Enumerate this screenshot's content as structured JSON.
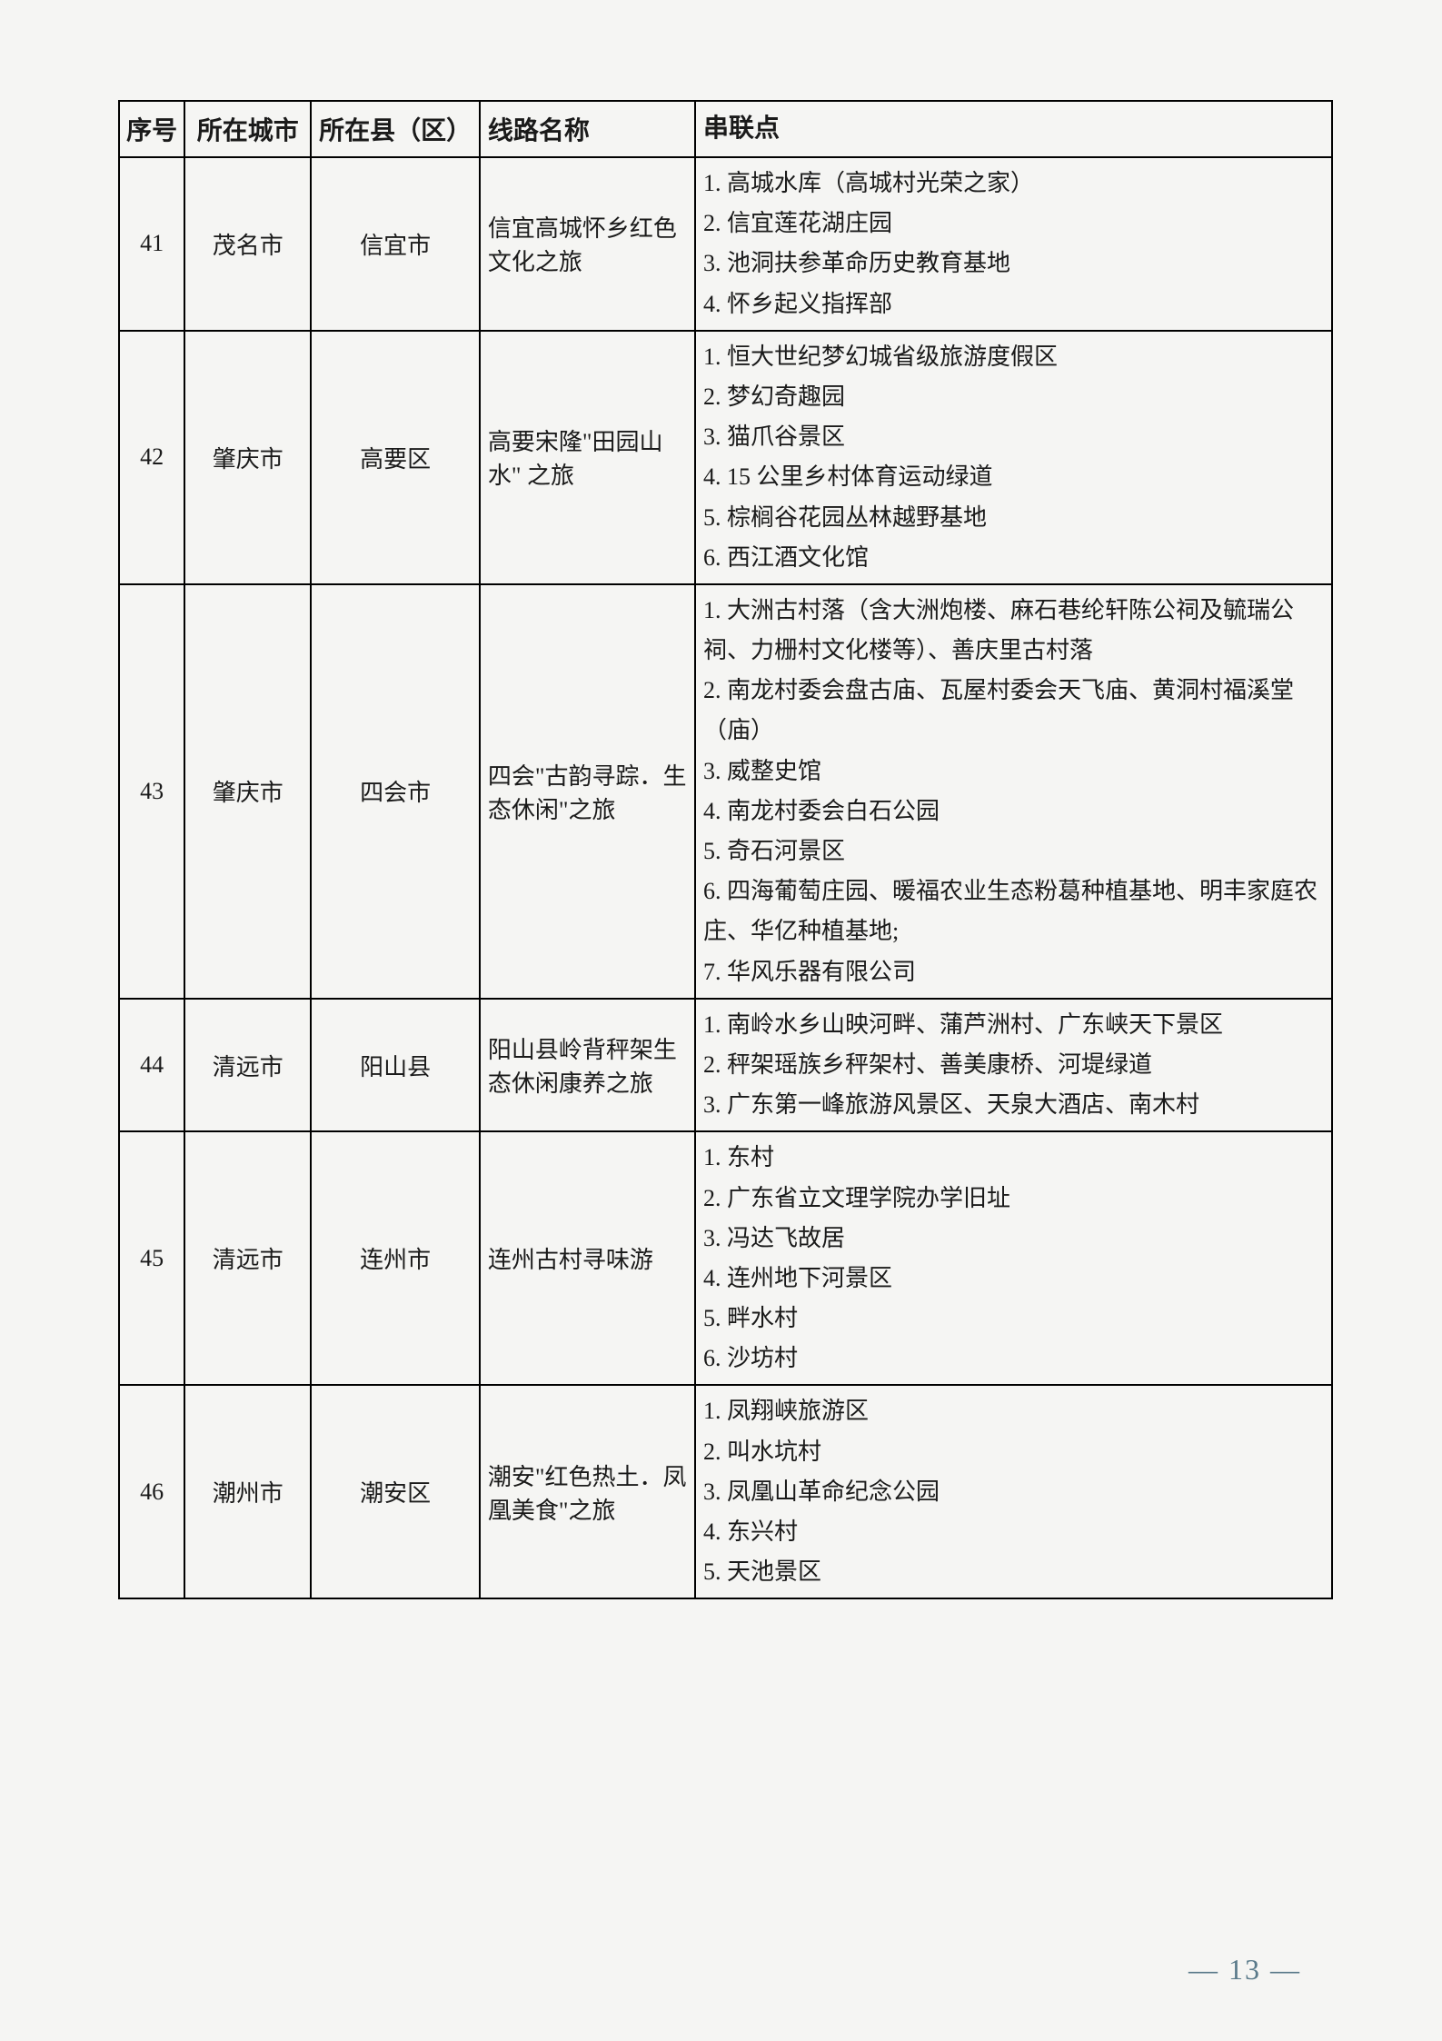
{
  "table": {
    "columns": [
      "序号",
      "所在城市",
      "所在县（区）",
      "线路名称",
      "串联点"
    ],
    "rows": [
      {
        "num": "41",
        "city": "茂名市",
        "county": "信宜市",
        "route": "信宜高城怀乡红色文化之旅",
        "points": [
          "1. 高城水库（高城村光荣之家）",
          "2. 信宜莲花湖庄园",
          "3. 池洞扶参革命历史教育基地",
          "4. 怀乡起义指挥部"
        ]
      },
      {
        "num": "42",
        "city": "肇庆市",
        "county": "高要区",
        "route": "高要宋隆\"田园山水\" 之旅",
        "points": [
          "1. 恒大世纪梦幻城省级旅游度假区",
          "2. 梦幻奇趣园",
          "3. 猫爪谷景区",
          "4. 15 公里乡村体育运动绿道",
          "5. 棕榈谷花园丛林越野基地",
          "6. 西江酒文化馆"
        ]
      },
      {
        "num": "43",
        "city": "肇庆市",
        "county": "四会市",
        "route": "四会\"古韵寻踪．生态休闲\"之旅",
        "points": [
          "1. 大洲古村落（含大洲炮楼、麻石巷纶轩陈公祠及毓瑞公祠、力栅村文化楼等）、善庆里古村落",
          "2. 南龙村委会盘古庙、瓦屋村委会天飞庙、黄洞村福溪堂（庙）",
          "3. 威整史馆",
          "4. 南龙村委会白石公园",
          "5. 奇石河景区",
          "6. 四海葡萄庄园、暖福农业生态粉葛种植基地、明丰家庭农庄、华亿种植基地;",
          "7. 华风乐器有限公司"
        ]
      },
      {
        "num": "44",
        "city": "清远市",
        "county": "阳山县",
        "route": "阳山县岭背秤架生态休闲康养之旅",
        "points": [
          "1. 南岭水乡山映河畔、蒲芦洲村、广东峡天下景区",
          "2. 秤架瑶族乡秤架村、善美康桥、河堤绿道",
          "3. 广东第一峰旅游风景区、天泉大酒店、南木村"
        ]
      },
      {
        "num": "45",
        "city": "清远市",
        "county": "连州市",
        "route": "连州古村寻味游",
        "points": [
          "1. 东村",
          "2. 广东省立文理学院办学旧址",
          "3. 冯达飞故居",
          "4. 连州地下河景区",
          "5. 畔水村",
          "6. 沙坊村"
        ]
      },
      {
        "num": "46",
        "city": "潮州市",
        "county": "潮安区",
        "route": "潮安\"红色热土．凤凰美食\"之旅",
        "points": [
          "1. 凤翔峡旅游区",
          "2. 叫水坑村",
          "3. 凤凰山革命纪念公园",
          "4. 东兴村",
          "5. 天池景区"
        ]
      }
    ]
  },
  "pageNumber": "— 13 —"
}
